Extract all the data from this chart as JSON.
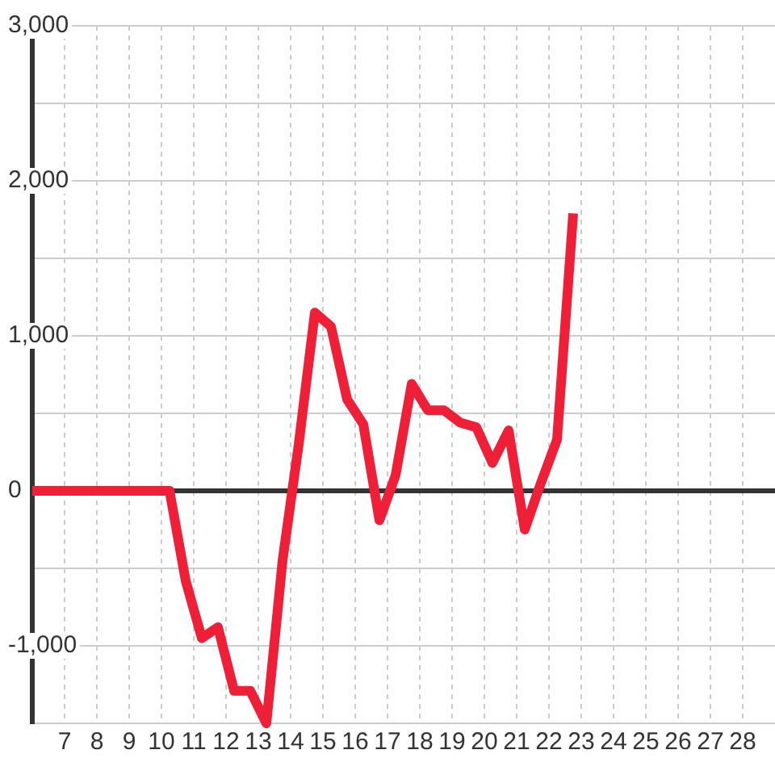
{
  "chart_data": {
    "type": "line",
    "x": [
      6,
      10.25,
      10.75,
      11.25,
      11.75,
      12.25,
      12.75,
      13.25,
      13.75,
      14.25,
      14.75,
      15.25,
      15.75,
      16.25,
      16.75,
      17.25,
      17.75,
      18.25,
      18.75,
      19.25,
      19.75,
      20.25,
      20.75,
      21.25,
      21.75,
      22.25,
      22.75
    ],
    "series": [
      {
        "color": "#ee1f36",
        "values": [
          0,
          0,
          -580,
          -950,
          -880,
          -1290,
          -1290,
          -1500,
          -450,
          300,
          1150,
          1060,
          590,
          430,
          -190,
          100,
          690,
          520,
          520,
          440,
          410,
          180,
          390,
          -250,
          50,
          330,
          1790
        ]
      }
    ],
    "xlim": [
      6,
      29
    ],
    "xticks": [
      7,
      8,
      9,
      10,
      11,
      12,
      13,
      14,
      15,
      16,
      17,
      18,
      19,
      20,
      21,
      22,
      23,
      24,
      25,
      26,
      27,
      28
    ],
    "ylim": [
      -1500,
      3000
    ],
    "yticks": [
      {
        "value": -1500,
        "label": null
      },
      {
        "value": -1000,
        "label": "-1,000"
      },
      {
        "value": -500,
        "label": null
      },
      0,
      {
        "value": 500,
        "label": null
      },
      {
        "value": 1000,
        "label": "1,000"
      },
      {
        "value": 1500,
        "label": null
      },
      {
        "value": 2000,
        "label": "2,000"
      },
      {
        "value": 2500,
        "label": null
      },
      {
        "value": 3000,
        "label": "3,000"
      }
    ],
    "grid": true,
    "marker": "none",
    "line_style": "solid"
  }
}
